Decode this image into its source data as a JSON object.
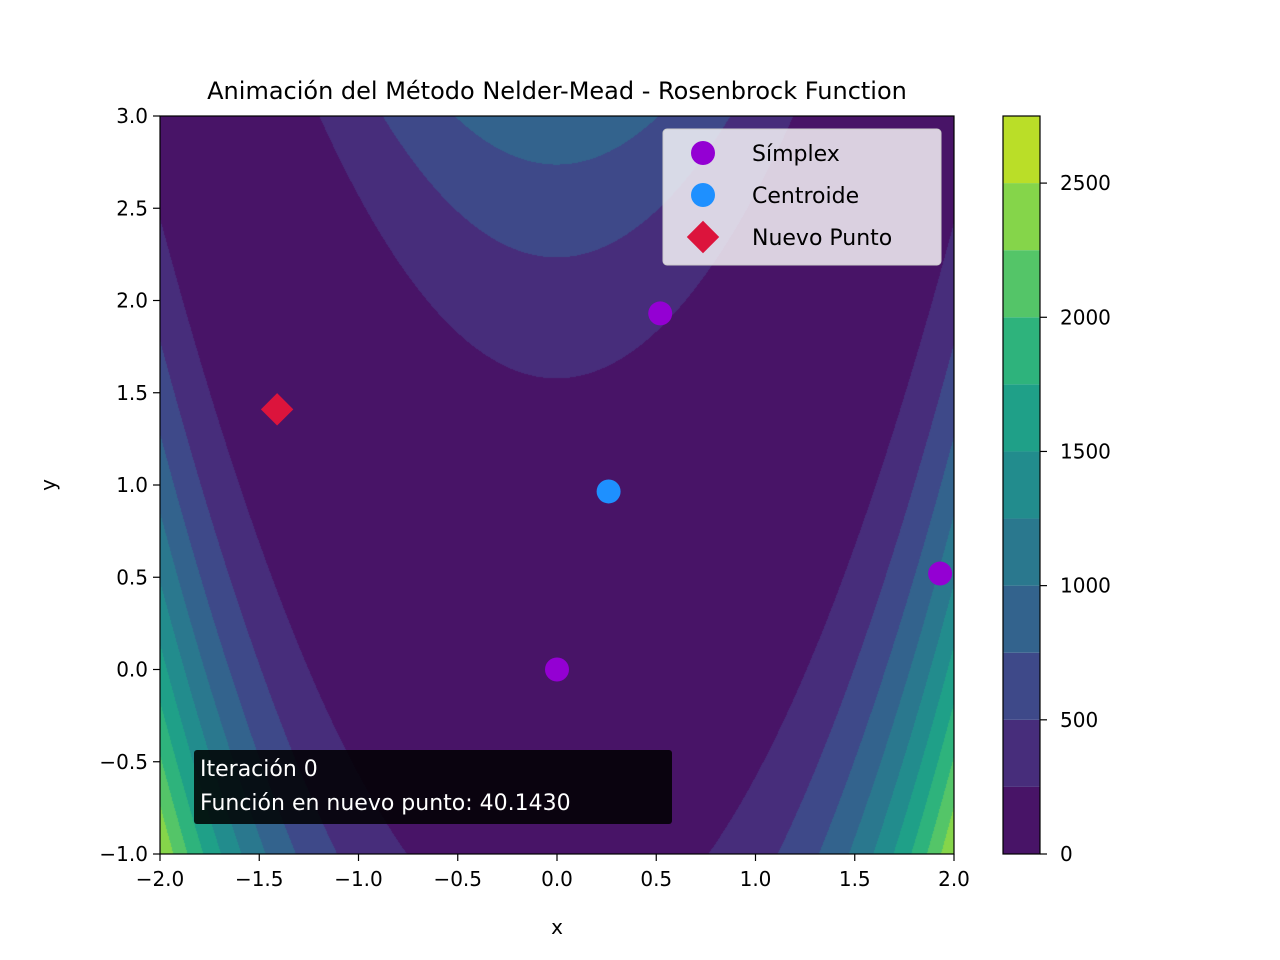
{
  "chart_data": {
    "type": "contour",
    "title": "Animación del Método Nelder-Mead - Rosenbrock Function",
    "xlabel": "x",
    "ylabel": "y",
    "xlim": [
      -2.0,
      2.0
    ],
    "ylim": [
      -1.0,
      3.0
    ],
    "xticks": [
      -2.0,
      -1.5,
      -1.0,
      -0.5,
      0.0,
      0.5,
      1.0,
      1.5,
      2.0
    ],
    "xtick_labels": [
      "−2.0",
      "−1.5",
      "−1.0",
      "−0.5",
      "0.0",
      "0.5",
      "1.0",
      "1.5",
      "2.0"
    ],
    "yticks": [
      -1.0,
      -0.5,
      0.0,
      0.5,
      1.0,
      1.5,
      2.0,
      2.5,
      3.0
    ],
    "ytick_labels": [
      "−1.0",
      "−0.5",
      "0.0",
      "0.5",
      "1.0",
      "1.5",
      "2.0",
      "2.5",
      "3.0"
    ],
    "function": "(1 - x)^2 + 100 (y - x^2)^2",
    "contour_levels": [
      0,
      250,
      500,
      750,
      1000,
      1250,
      1500,
      1750,
      2000,
      2250,
      2500,
      2750
    ],
    "level_colors": [
      "#481467",
      "#472d7b",
      "#3e4989",
      "#33638d",
      "#2a788e",
      "#228c8d",
      "#1fa088",
      "#2eb37c",
      "#54c568",
      "#85d54a",
      "#bade28",
      "#e0e318"
    ],
    "colorbar": {
      "range": [
        0,
        2750
      ],
      "ticks": [
        0,
        500,
        1000,
        1500,
        2000,
        2500
      ],
      "tick_labels": [
        "0",
        "500",
        "1000",
        "1500",
        "2000",
        "2500"
      ]
    },
    "legend": {
      "placement": "top-right",
      "entries": [
        {
          "label": "Símplex",
          "color": "#9400d3",
          "marker": "circle"
        },
        {
          "label": "Centroide",
          "color": "#1e90ff",
          "marker": "circle"
        },
        {
          "label": "Nuevo Punto",
          "color": "#dc143c",
          "marker": "diamond"
        }
      ]
    },
    "series": [
      {
        "name": "Símplex",
        "color": "#9400d3",
        "marker": "circle",
        "points": [
          [
            0.52,
            1.93
          ],
          [
            1.93,
            0.52
          ],
          [
            0.0,
            0.0
          ]
        ]
      },
      {
        "name": "Centroide",
        "color": "#1e90ff",
        "marker": "circle",
        "points": [
          [
            0.26,
            0.965
          ]
        ]
      },
      {
        "name": "Nuevo Punto",
        "color": "#dc143c",
        "marker": "diamond",
        "points": [
          [
            -1.41,
            1.41
          ]
        ]
      }
    ],
    "annotation": {
      "placement": "bottom-left",
      "lines": [
        "Iteración 0",
        "Función en nuevo punto: 40.1430"
      ]
    }
  }
}
